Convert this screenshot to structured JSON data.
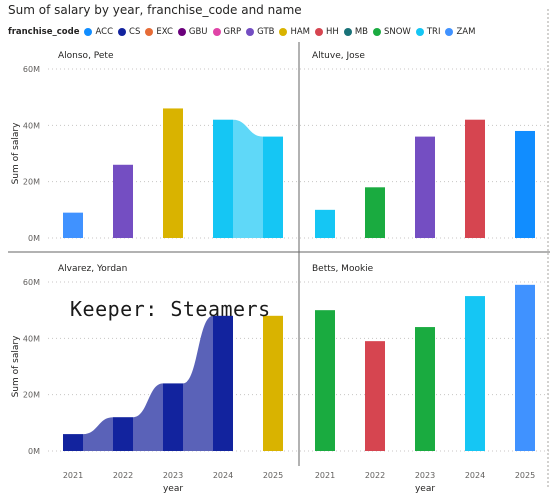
{
  "title": "Sum of salary by year, franchise_code and name",
  "legend": {
    "title": "franchise_code",
    "items": [
      {
        "label": "ACC",
        "color": "#118dff"
      },
      {
        "label": "CS",
        "color": "#12239e"
      },
      {
        "label": "EXC",
        "color": "#e66c37"
      },
      {
        "label": "GBU",
        "color": "#6b007b"
      },
      {
        "label": "GRP",
        "color": "#e044a7"
      },
      {
        "label": "GTB",
        "color": "#744ec2"
      },
      {
        "label": "HAM",
        "color": "#d9b300"
      },
      {
        "label": "HH",
        "color": "#d64550"
      },
      {
        "label": "MB",
        "color": "#197278"
      },
      {
        "label": "SNOW",
        "color": "#1aab40"
      },
      {
        "label": "TRI",
        "color": "#15c6f4"
      },
      {
        "label": "ZAM",
        "color": "#4092ff"
      }
    ]
  },
  "watermark": "Keeper: Steamers",
  "chart_data": {
    "type": "bar",
    "categories": [
      "2021",
      "2022",
      "2023",
      "2024",
      "2025"
    ],
    "xlabel": "year",
    "ylabel": "Sum of salary",
    "ylim": [
      0,
      60000000
    ],
    "yticks": [
      0,
      20000000,
      40000000,
      60000000
    ],
    "ytick_labels": [
      "0M",
      "20M",
      "40M",
      "60M"
    ],
    "panels": [
      {
        "name": "Alonso, Pete",
        "values": [
          9000000,
          26000000,
          46000000,
          42000000,
          36000000
        ],
        "franchise": [
          "ZAM",
          "GTB",
          "HAM",
          "TRI",
          "TRI"
        ],
        "ribbons": [
          {
            "from": 3,
            "to": 4,
            "color": "#5fd8f8"
          }
        ]
      },
      {
        "name": "Altuve, Jose",
        "values": [
          10000000,
          18000000,
          36000000,
          42000000,
          38000000
        ],
        "franchise": [
          "TRI",
          "SNOW",
          "GTB",
          "HH",
          "ACC"
        ],
        "ribbons": []
      },
      {
        "name": "Alvarez, Yordan",
        "values": [
          6000000,
          12000000,
          24000000,
          48000000,
          48000000
        ],
        "franchise": [
          "CS",
          "CS",
          "CS",
          "CS",
          "HAM"
        ],
        "ribbons": [
          {
            "from": 0,
            "to": 1,
            "color": "#5a62b8"
          },
          {
            "from": 1,
            "to": 2,
            "color": "#5a62b8"
          },
          {
            "from": 2,
            "to": 3,
            "color": "#5a62b8"
          }
        ]
      },
      {
        "name": "Betts, Mookie",
        "values": [
          50000000,
          39000000,
          44000000,
          55000000,
          59000000
        ],
        "franchise": [
          "SNOW",
          "HH",
          "SNOW",
          "TRI",
          "ZAM"
        ],
        "ribbons": []
      }
    ]
  }
}
